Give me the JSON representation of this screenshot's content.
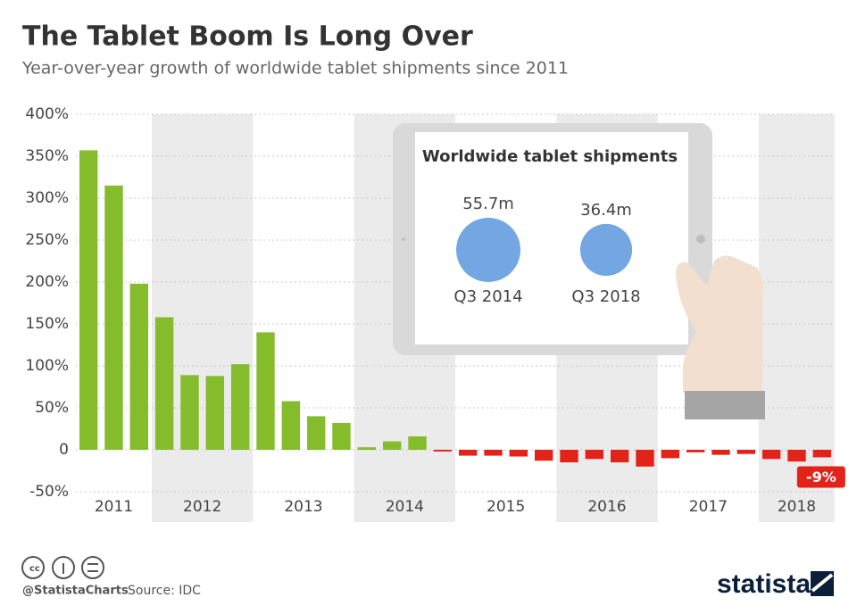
{
  "chart_data": {
    "type": "bar",
    "title": "The Tablet Boom Is Long Over",
    "subtitle": "Year-over-year growth of worldwide tablet shipments since 2011",
    "positive_color": "#84bc2b",
    "negative_color": "#e2231a",
    "ylim": [
      -50,
      400
    ],
    "yticks": [
      {
        "value": -50,
        "label": "-50%"
      },
      0,
      {
        "value": 50,
        "label": "50%"
      },
      {
        "value": 100,
        "label": "100%"
      },
      {
        "value": 150,
        "label": "150%"
      },
      {
        "value": 200,
        "label": "200%"
      },
      {
        "value": 250,
        "label": "250%"
      },
      {
        "value": 300,
        "label": "300%"
      },
      {
        "value": 350,
        "label": "350%"
      },
      {
        "value": 400,
        "label": "400%"
      }
    ],
    "grid": true,
    "groups": [
      {
        "label": "2011",
        "values": [
          357,
          315,
          198
        ]
      },
      {
        "label": "2012",
        "values": [
          158,
          89,
          88,
          102
        ]
      },
      {
        "label": "2013",
        "values": [
          140,
          58,
          40,
          32
        ]
      },
      {
        "label": "2014",
        "values": [
          3,
          10,
          16,
          -2
        ]
      },
      {
        "label": "2015",
        "values": [
          -7,
          -7,
          -8,
          -13
        ]
      },
      {
        "label": "2016",
        "values": [
          -15,
          -11,
          -15,
          -20
        ]
      },
      {
        "label": "2017",
        "values": [
          -10,
          -3,
          -6,
          -5
        ]
      },
      {
        "label": "2018",
        "values": [
          -11,
          -14,
          -9
        ],
        "value_labels": [
          null,
          null,
          "-9%"
        ]
      }
    ],
    "inset": {
      "type": "bubble",
      "title": "Worldwide tablet shipments",
      "color": "#74a7e2",
      "categories": [
        "Q3 2014",
        "Q3 2018"
      ],
      "values": [
        55.7,
        36.4
      ],
      "value_labels": [
        "55.7m",
        "36.4m"
      ]
    }
  },
  "footer": {
    "handle": "@StatistaCharts",
    "source": "Source: IDC",
    "brand": "statista"
  }
}
